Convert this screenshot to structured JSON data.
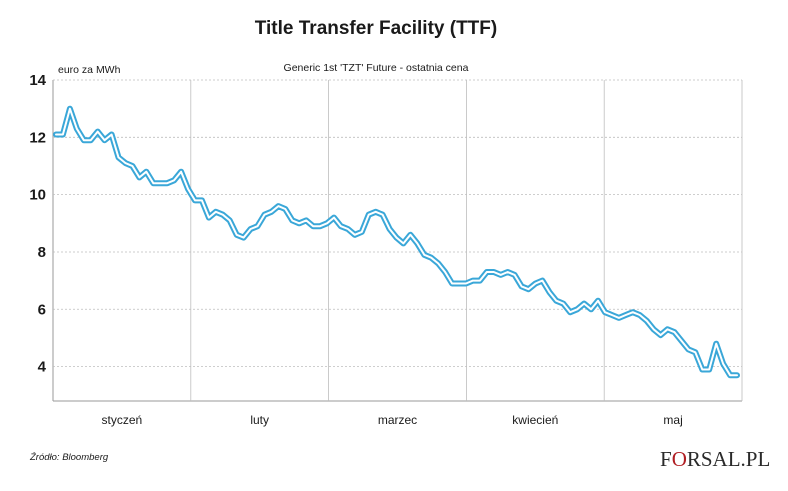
{
  "chart_data": {
    "type": "line",
    "title": "Title Transfer Facility (TTF)",
    "subtitle": "Generic 1st 'TZT' Future - ostatnia cena",
    "unit_label": "euro za MWh",
    "ylim": [
      2.8,
      14
    ],
    "yticks": [
      "4",
      "6",
      "8",
      "10",
      "12",
      "14"
    ],
    "months": [
      "styczeń",
      "luty",
      "marzec",
      "kwiecień",
      "maj"
    ],
    "grid": true,
    "line_color": "#3aa7d8",
    "series": [
      {
        "values": [
          12.1,
          12.1,
          13.0,
          12.3,
          11.9,
          11.9,
          12.2,
          11.9,
          12.1,
          11.3,
          11.1,
          11.0,
          10.6,
          10.8,
          10.4,
          10.4,
          10.4,
          10.5,
          10.8,
          10.2,
          9.8,
          9.8,
          9.2,
          9.4,
          9.3,
          9.1,
          8.6,
          8.5,
          8.8,
          8.9,
          9.3,
          9.4,
          9.6,
          9.5,
          9.1,
          9.0,
          9.1,
          8.9,
          8.9,
          9.0,
          9.2,
          8.9,
          8.8,
          8.6,
          8.7,
          9.3,
          9.4,
          9.3,
          8.8,
          8.5,
          8.3,
          8.6,
          8.3,
          7.9,
          7.8,
          7.6,
          7.3,
          6.9,
          6.9,
          6.9,
          7.0,
          7.0,
          7.3,
          7.3,
          7.2,
          7.3,
          7.2,
          6.8,
          6.7,
          6.9,
          7.0,
          6.6,
          6.3,
          6.2,
          5.9,
          6.0,
          6.2,
          6.0,
          6.3,
          5.9,
          5.8,
          5.7,
          5.8,
          5.9,
          5.8,
          5.6,
          5.3,
          5.1,
          5.3,
          5.2,
          4.9,
          4.6,
          4.5,
          3.9,
          3.9,
          4.8,
          4.1,
          3.7,
          3.7
        ]
      }
    ]
  },
  "source": "Źródło: Bloomberg",
  "logo": {
    "part1": "F",
    "part2": "O",
    "part3": "RSAL.PL"
  }
}
